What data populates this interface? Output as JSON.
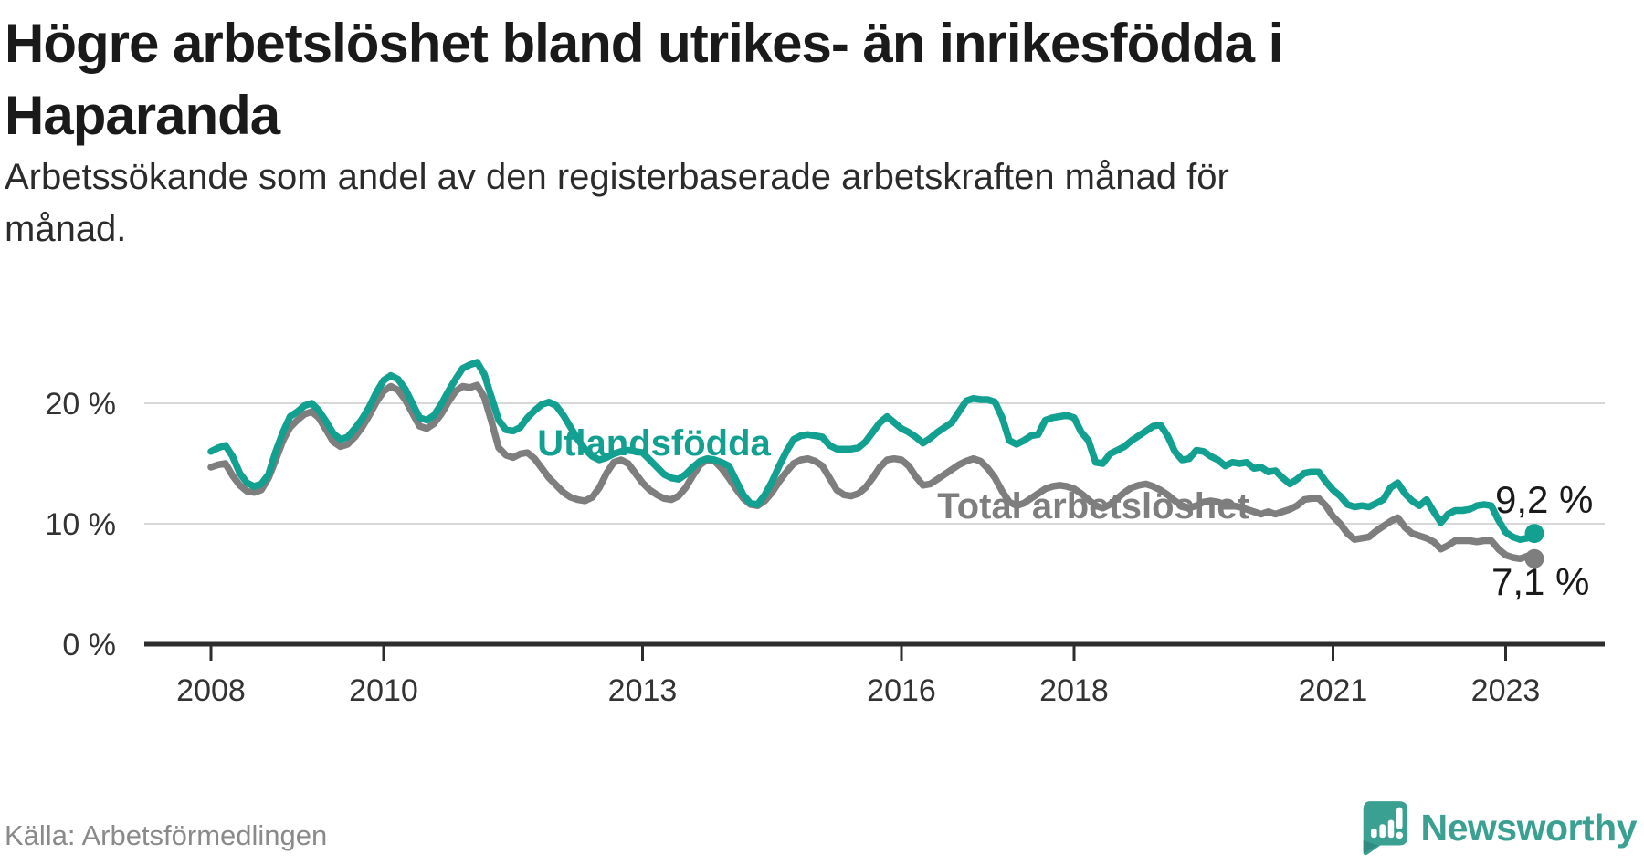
{
  "header": {
    "title": "Högre arbetslöshet bland utrikes- än inrikesfödda i Haparanda",
    "title_line1": "Högre arbetslöshet bland utrikes- än inrikesfödda i",
    "title_line2": "Haparanda",
    "subtitle": "Arbetssökande som andel av den registerbaserade arbetskraften månad för månad.",
    "subtitle_line1": "Arbetssökande som andel av den registerbaserade arbetskraften månad för",
    "subtitle_line2": "månad."
  },
  "footer": {
    "source": "Källa: Arbetsförmedlingen",
    "brand": "Newsworthy"
  },
  "colors": {
    "foreign_born_line": "#12a091",
    "total_line": "#7e7e7e",
    "grid": "#d8d8d8",
    "axis": "#2d2d2d",
    "tick_text": "#333333",
    "title_text": "#1a1a1a",
    "source_text": "#8a8a8a",
    "brand_teal": "#3aa092",
    "value_label_text": "#1a1a1a"
  },
  "icons": {
    "logo": "newsworthy-speech-bubble-bar-chart-icon"
  },
  "chart_data": {
    "type": "line",
    "title": "Högre arbetslöshet bland utrikes- än inrikesfödda i Haparanda",
    "subtitle": "Arbetssökande som andel av den registerbaserade arbetskraften månad för månad.",
    "unit": "%",
    "frequency": "monthly",
    "x_start": "2008-01",
    "x_end": "2023-05",
    "grid": true,
    "ylim": [
      0,
      24
    ],
    "y_ticks": [
      {
        "value": 0,
        "label": "0 %"
      },
      {
        "value": 10,
        "label": "10 %"
      },
      {
        "value": 20,
        "label": "20 %"
      }
    ],
    "x_ticks": [
      {
        "year": 2008,
        "label": "2008"
      },
      {
        "year": 2010,
        "label": "2010"
      },
      {
        "year": 2013,
        "label": "2013"
      },
      {
        "year": 2016,
        "label": "2016"
      },
      {
        "year": 2018,
        "label": "2018"
      },
      {
        "year": 2021,
        "label": "2021"
      },
      {
        "year": 2023,
        "label": "2023"
      }
    ],
    "series": [
      {
        "name": "Utlandsfödda",
        "color": "#12a091",
        "end_label": "9,2 %",
        "end_value": 9.2,
        "values": [
          16.0,
          16.3,
          16.5,
          15.6,
          14.2,
          13.4,
          13.1,
          13.3,
          14.1,
          16.0,
          17.6,
          18.9,
          19.3,
          19.8,
          20.0,
          19.4,
          18.5,
          17.5,
          17.0,
          17.2,
          17.9,
          18.7,
          19.7,
          20.9,
          21.9,
          22.3,
          22.0,
          21.2,
          20.0,
          18.8,
          18.6,
          19.0,
          19.9,
          21.0,
          22.0,
          22.9,
          23.2,
          23.4,
          22.4,
          20.5,
          18.6,
          17.8,
          17.7,
          18.0,
          18.8,
          19.4,
          19.9,
          20.1,
          19.8,
          19.0,
          18.0,
          17.0,
          16.2,
          15.6,
          15.3,
          15.5,
          15.8,
          16.0,
          16.1,
          16.0,
          15.9,
          15.3,
          14.7,
          14.1,
          13.8,
          13.7,
          14.1,
          14.7,
          15.2,
          15.4,
          15.3,
          15.1,
          14.8,
          13.6,
          12.4,
          11.7,
          11.6,
          12.4,
          13.5,
          14.8,
          16.0,
          17.0,
          17.3,
          17.4,
          17.3,
          17.2,
          16.5,
          16.2,
          16.2,
          16.2,
          16.3,
          16.8,
          17.6,
          18.4,
          18.9,
          18.4,
          17.9,
          17.6,
          17.2,
          16.7,
          17.1,
          17.6,
          18.0,
          18.4,
          19.3,
          20.2,
          20.4,
          20.3,
          20.3,
          20.1,
          18.8,
          16.9,
          16.6,
          16.9,
          17.3,
          17.4,
          18.6,
          18.8,
          18.9,
          19.0,
          18.8,
          17.6,
          16.9,
          15.1,
          15.0,
          15.8,
          16.1,
          16.4,
          16.9,
          17.3,
          17.7,
          18.1,
          18.2,
          17.3,
          16.0,
          15.3,
          15.4,
          16.1,
          16.0,
          15.6,
          15.3,
          14.8,
          15.1,
          15.0,
          15.1,
          14.6,
          14.7,
          14.3,
          14.4,
          13.8,
          13.3,
          13.7,
          14.2,
          14.3,
          14.3,
          13.5,
          12.8,
          12.3,
          11.6,
          11.4,
          11.5,
          11.4,
          11.7,
          12.0,
          13.0,
          13.4,
          12.5,
          11.9,
          11.5,
          12.0,
          11.0,
          10.1,
          10.8,
          11.1,
          11.1,
          11.2,
          11.5,
          11.6,
          11.5,
          10.3,
          9.3,
          8.9,
          8.7,
          8.8,
          9.2
        ]
      },
      {
        "name": "Total arbetslöshet",
        "color": "#7e7e7e",
        "end_label": "7,1 %",
        "end_value": 7.1,
        "values": [
          14.7,
          14.9,
          15.0,
          14.0,
          13.2,
          12.7,
          12.6,
          12.8,
          13.8,
          15.3,
          16.9,
          18.0,
          18.6,
          19.1,
          19.3,
          18.8,
          17.8,
          16.8,
          16.4,
          16.6,
          17.2,
          18.0,
          19.0,
          20.1,
          21.0,
          21.4,
          21.1,
          20.3,
          19.2,
          18.1,
          17.9,
          18.3,
          19.1,
          20.1,
          21.0,
          21.4,
          21.3,
          21.5,
          20.5,
          18.5,
          16.3,
          15.7,
          15.5,
          15.8,
          15.9,
          15.4,
          14.6,
          13.8,
          13.2,
          12.6,
          12.2,
          12.0,
          11.9,
          12.2,
          13.0,
          14.2,
          15.1,
          15.3,
          15.0,
          14.2,
          13.4,
          12.8,
          12.4,
          12.1,
          12.0,
          12.3,
          13.0,
          14.0,
          14.9,
          15.3,
          15.2,
          14.6,
          13.8,
          12.9,
          12.1,
          11.6,
          11.5,
          11.9,
          12.6,
          13.5,
          14.3,
          15.0,
          15.3,
          15.4,
          15.2,
          14.8,
          13.8,
          12.8,
          12.4,
          12.3,
          12.5,
          13.0,
          13.8,
          14.7,
          15.3,
          15.4,
          15.3,
          14.8,
          13.9,
          13.2,
          13.3,
          13.7,
          14.1,
          14.5,
          14.9,
          15.2,
          15.4,
          15.2,
          14.6,
          13.8,
          12.7,
          11.8,
          11.5,
          11.7,
          12.1,
          12.5,
          12.9,
          13.1,
          13.2,
          13.1,
          12.9,
          12.5,
          12.0,
          11.5,
          11.3,
          11.6,
          12.1,
          12.6,
          13.0,
          13.2,
          13.3,
          13.1,
          12.8,
          12.4,
          11.9,
          11.5,
          11.3,
          11.5,
          11.8,
          11.9,
          11.8,
          11.6,
          11.5,
          11.4,
          11.2,
          11.0,
          10.8,
          11.0,
          10.8,
          11.0,
          11.2,
          11.5,
          12.0,
          12.1,
          12.1,
          11.5,
          10.6,
          10.0,
          9.2,
          8.7,
          8.8,
          8.9,
          9.4,
          9.8,
          10.2,
          10.5,
          9.7,
          9.2,
          9.0,
          8.8,
          8.5,
          7.9,
          8.2,
          8.6,
          8.6,
          8.6,
          8.5,
          8.6,
          8.6,
          7.9,
          7.4,
          7.2,
          7.1,
          7.3,
          7.1
        ]
      }
    ]
  }
}
